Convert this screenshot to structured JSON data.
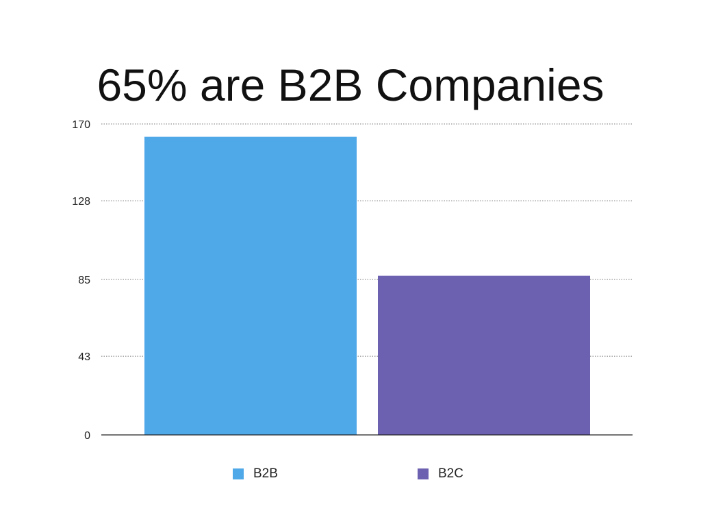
{
  "chart_data": {
    "type": "bar",
    "title": "65% are B2B Companies",
    "categories": [
      "B2B",
      "B2C"
    ],
    "values": [
      163,
      87
    ],
    "colors": [
      "#4fa8e8",
      "#6c61b0"
    ],
    "ylim": [
      0,
      170
    ],
    "yticks": [
      0,
      43,
      85,
      128,
      170
    ],
    "grid": true,
    "legend_placement": "bottom",
    "xlabel": "",
    "ylabel": ""
  }
}
